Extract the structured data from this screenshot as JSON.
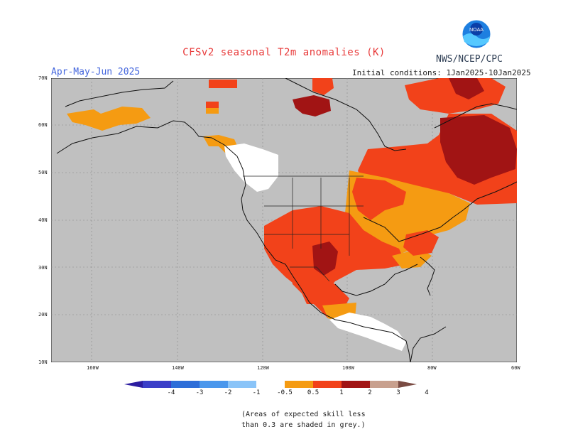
{
  "title": "CFSv2 seasonal T2m anomalies (K)",
  "agency": "NWS/NCEP/CPC",
  "logo_text": "NOAA",
  "period": "Apr-May-Jun 2025",
  "initial_conditions": "Initial conditions:  1Jan2025-10Jan2025",
  "lat_ticks": [
    "70N",
    "60N",
    "50N",
    "40N",
    "30N",
    "20N",
    "10N"
  ],
  "lon_ticks": [
    "160W",
    "140W",
    "120W",
    "100W",
    "80W",
    "60W"
  ],
  "colorbar": {
    "labels": [
      "-4",
      "-3",
      "-2",
      "-1",
      "-0.5",
      "0.5",
      "1",
      "2",
      "3",
      "4"
    ],
    "colors": [
      "#2c1da0",
      "#3b3fc8",
      "#2e6ed8",
      "#4a97ec",
      "#8ac4f8",
      "#ffffff",
      "#f59b12",
      "#f2421a",
      "#a11414",
      "#c8a08e",
      "#7a4b43"
    ]
  },
  "note_line1": "(Areas of expected skill less",
  "note_line2": "than 0.3 are shaded in grey.)",
  "colors": {
    "grey": "#c0c0c0",
    "orange": "#f59b12",
    "red": "#f2421a",
    "darkred": "#a11414",
    "white": "#ffffff"
  }
}
